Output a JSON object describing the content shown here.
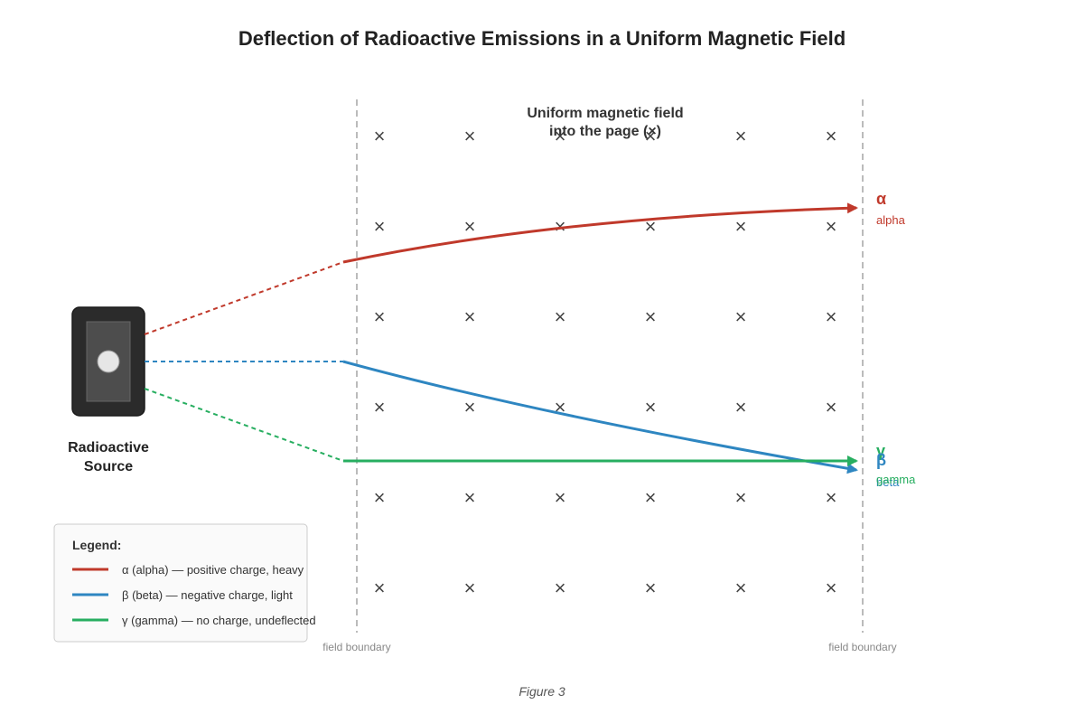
{
  "title": "Deflection of Radioactive Emissions in a Uniform Magnetic Field",
  "field_label": [
    "Uniform magnetic field",
    "into the page (×)"
  ],
  "field_symbol": "×",
  "boundary_left_label": "field boundary",
  "boundary_right_label": "field boundary",
  "source_label": [
    "Radioactive",
    "Source"
  ],
  "rays": {
    "alpha": {
      "symbol": "α",
      "name": "alpha",
      "color": "#c0392b"
    },
    "beta": {
      "symbol": "β",
      "name": "beta",
      "color": "#2e86c1"
    },
    "gamma": {
      "symbol": "γ",
      "name": "gamma",
      "color": "#27ae60"
    }
  },
  "legend": {
    "title": "Legend:",
    "items": [
      {
        "text": "α (alpha) — positive charge, heavy",
        "color": "#c0392b"
      },
      {
        "text": "β (beta) — negative charge, light",
        "color": "#2e86c1"
      },
      {
        "text": "γ (gamma) — no charge, undeflected",
        "color": "#27ae60"
      }
    ]
  },
  "caption": "Figure 3"
}
